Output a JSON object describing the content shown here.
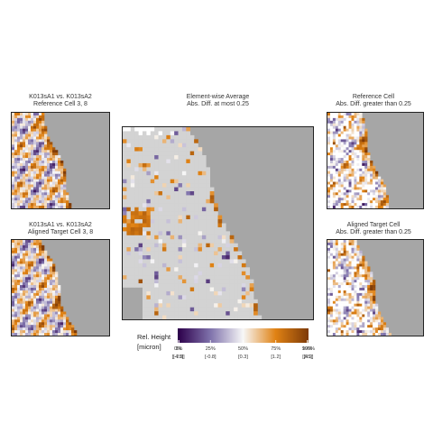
{
  "chart_data": {
    "type": "heatmap",
    "panels": [
      {
        "id": "ref-small",
        "title_lines": [
          "K013sA1 vs. K013sA2",
          "Reference Cell 3, 8"
        ]
      },
      {
        "id": "target-small",
        "title_lines": [
          "K013sA1 vs. K013sA2",
          "Aligned Target Cell 3, 8"
        ]
      },
      {
        "id": "average",
        "title_lines": [
          "Element-wise Average",
          "Abs. Diff. at most 0.25"
        ]
      },
      {
        "id": "ref-diff",
        "title_lines": [
          "Reference Cell",
          "Abs. Diff. greater than 0.25"
        ]
      },
      {
        "id": "target-diff",
        "title_lines": [
          "Aligned Target Cell",
          "Abs. Diff. greater than 0.25"
        ]
      }
    ],
    "legend": {
      "title_lines": [
        "Rel. Height",
        "[micron]"
      ],
      "percent_labels": [
        "0%",
        "1%",
        "25%",
        "50%",
        "75%",
        "99%",
        "100%"
      ],
      "micron_labels": [
        "[-4.9]",
        "[-2.9]",
        "[-0.8]",
        "[0.3]",
        "[1.2]",
        "[3.5]",
        "[4.2]"
      ],
      "quantiles": [
        0,
        0.01,
        0.25,
        0.5,
        0.75,
        0.99,
        1
      ],
      "colors": [
        "#2d004b",
        "#8073ac",
        "#f7f7f7",
        "#e08214",
        "#7f3b08"
      ]
    },
    "missing_color": "#a6a6a6",
    "matched_color": "#d3d3d3"
  }
}
